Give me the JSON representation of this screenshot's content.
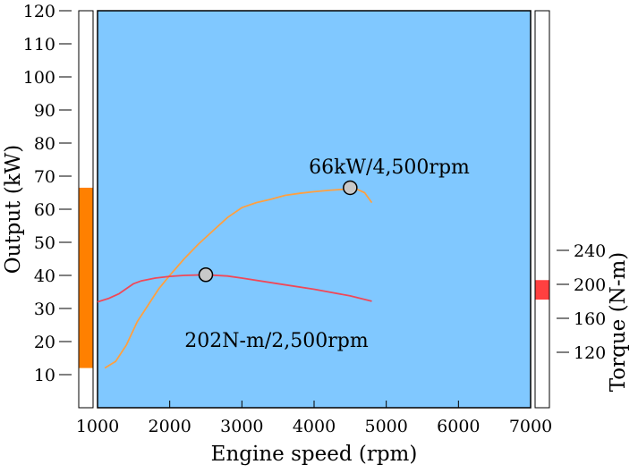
{
  "chart_data": {
    "type": "line",
    "xlabel": "Engine speed (rpm)",
    "ylabel_left": "Output (kW)",
    "ylabel_right": "Torque (N-m)",
    "xlim": [
      1000,
      7000
    ],
    "xticks": [
      1000,
      2000,
      3000,
      4000,
      5000,
      6000,
      7000
    ],
    "ylim_left": [
      0,
      120
    ],
    "yticks_left": [
      10,
      20,
      30,
      40,
      50,
      60,
      70,
      80,
      90,
      100,
      110,
      120
    ],
    "yticks_right": [
      120,
      160,
      200,
      240
    ],
    "grid": false,
    "plot_background": "#80C8FF",
    "series": [
      {
        "key": "output",
        "color": "#FFA040",
        "x": [
          1100,
          1250,
          1400,
          1550,
          1700,
          1850,
          2000,
          2200,
          2400,
          2600,
          2800,
          3000,
          3200,
          3400,
          3600,
          3800,
          4000,
          4200,
          4400,
          4500,
          4600,
          4700,
          4800
        ],
        "y": [
          12,
          14,
          19,
          26,
          31,
          36,
          40,
          45,
          49.5,
          53.5,
          57.5,
          60.5,
          62,
          63,
          64.2,
          64.8,
          65.3,
          65.7,
          66,
          66.2,
          66,
          65,
          62
        ]
      },
      {
        "key": "torque",
        "color": "#F04858",
        "x": [
          1000,
          1150,
          1300,
          1400,
          1500,
          1600,
          1800,
          2000,
          2200,
          2500,
          2800,
          3000,
          3500,
          4000,
          4500,
          4800
        ],
        "y": [
          32,
          33,
          34.5,
          36,
          37.5,
          38.3,
          39.2,
          39.7,
          40,
          40.2,
          39.8,
          39.2,
          37.5,
          35.8,
          33.8,
          32.2
        ]
      }
    ],
    "markers": [
      {
        "x": 4500,
        "y": 66.5
      },
      {
        "x": 2500,
        "y": 40.2
      }
    ],
    "annotations": [
      {
        "text": "66kW/4,500rpm"
      },
      {
        "text": "202N-m/2,500rpm"
      }
    ],
    "left_range_bar": {
      "from": 12,
      "to": 66.5,
      "color": "#FF8000"
    },
    "right_range_bar": {
      "from": 182,
      "to": 205,
      "color": "#FF4040"
    }
  }
}
